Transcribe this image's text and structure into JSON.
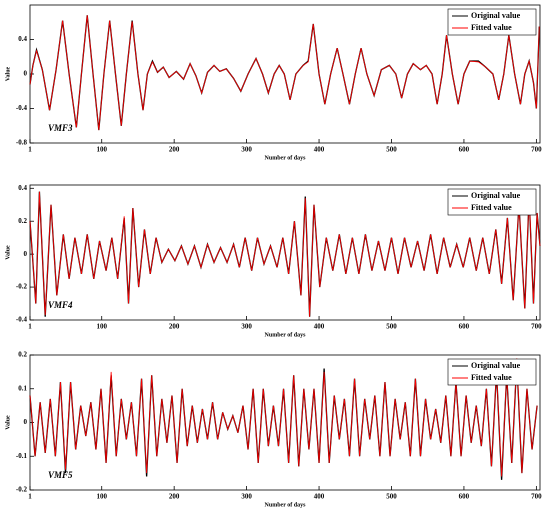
{
  "chart_data": [
    {
      "type": "line",
      "annotation": "VMF3",
      "xlabel": "Number of days",
      "ylabel": "Value",
      "legend": "upper right",
      "xlim": [
        1,
        705
      ],
      "xticks": [
        1,
        100,
        200,
        300,
        400,
        500,
        600,
        700
      ],
      "ylim": [
        -0.8,
        0.8
      ],
      "yticks": [
        -0.8,
        -0.4,
        0,
        0.4
      ],
      "x": [
        1,
        5,
        10,
        18,
        28,
        37,
        46,
        55,
        65,
        72,
        80,
        88,
        96,
        103,
        111,
        119,
        127,
        134,
        142,
        150,
        157,
        163,
        170,
        177,
        185,
        193,
        203,
        213,
        222,
        230,
        238,
        246,
        255,
        263,
        272,
        282,
        292,
        302,
        313,
        322,
        330,
        338,
        345,
        352,
        360,
        368,
        378,
        385,
        392,
        400,
        408,
        416,
        425,
        433,
        442,
        450,
        458,
        466,
        476,
        486,
        497,
        506,
        514,
        522,
        530,
        540,
        548,
        556,
        563,
        570,
        576,
        584,
        592,
        600,
        608,
        620,
        630,
        640,
        648,
        655,
        662,
        670,
        678,
        684,
        690,
        696,
        700,
        704
      ],
      "series": [
        {
          "name": "Original value",
          "color": "#000000",
          "values": [
            -0.12,
            0.1,
            0.28,
            0.05,
            -0.42,
            0.05,
            0.62,
            0,
            -0.62,
            0,
            0.68,
            0,
            -0.65,
            0,
            0.62,
            0,
            -0.6,
            0,
            0.62,
            0,
            -0.42,
            0,
            0.15,
            0.02,
            0.08,
            -0.04,
            0.03,
            -0.06,
            0.12,
            -0.02,
            -0.22,
            0.02,
            0.1,
            0.03,
            0.06,
            -0.05,
            -0.2,
            0,
            0.18,
            0,
            -0.22,
            0,
            0.1,
            0,
            -0.3,
            0,
            0.1,
            0.15,
            0.58,
            0,
            -0.35,
            0,
            0.3,
            0,
            -0.35,
            0,
            0.3,
            0,
            -0.25,
            0.05,
            0.1,
            0,
            -0.28,
            0,
            0.12,
            0.05,
            0.1,
            0,
            -0.35,
            0,
            0.45,
            0,
            -0.35,
            0,
            0.15,
            0.15,
            0.08,
            0,
            -0.3,
            0,
            0.45,
            0,
            -0.35,
            0,
            0.15,
            -0.1,
            -0.4,
            0.55
          ]
        },
        {
          "name": "Fitted value",
          "color": "#ff0000",
          "values": [
            -0.12,
            0.1,
            0.27,
            0.05,
            -0.42,
            0.05,
            0.62,
            0,
            -0.62,
            0,
            0.68,
            0,
            -0.65,
            0,
            0.62,
            0,
            -0.6,
            0,
            0.61,
            0,
            -0.42,
            0,
            0.14,
            0.02,
            0.08,
            -0.04,
            0.03,
            -0.06,
            0.12,
            -0.02,
            -0.22,
            0.02,
            0.1,
            0.03,
            0.06,
            -0.05,
            -0.2,
            0,
            0.18,
            0,
            -0.22,
            0,
            0.1,
            0,
            -0.3,
            0,
            0.1,
            0.14,
            0.58,
            0,
            -0.35,
            0,
            0.3,
            0,
            -0.35,
            0,
            0.3,
            0,
            -0.25,
            0.05,
            0.1,
            0,
            -0.28,
            0,
            0.12,
            0.05,
            0.1,
            0,
            -0.35,
            0,
            0.45,
            0,
            -0.35,
            0,
            0.15,
            0.14,
            0.08,
            0,
            -0.3,
            0,
            0.45,
            0,
            -0.35,
            0,
            0.15,
            -0.1,
            -0.4,
            0.55
          ]
        }
      ]
    },
    {
      "type": "line",
      "annotation": "VMF4",
      "xlabel": "Number of days",
      "ylabel": "Value",
      "legend": "upper right",
      "xlim": [
        1,
        705
      ],
      "xticks": [
        1,
        100,
        200,
        300,
        400,
        500,
        600,
        700
      ],
      "ylim": [
        -0.4,
        0.42
      ],
      "yticks": [
        -0.4,
        -0.2,
        0,
        0.2,
        0.4
      ],
      "x": [
        1,
        9,
        14,
        22,
        30,
        38,
        47,
        55,
        63,
        72,
        80,
        89,
        97,
        106,
        114,
        122,
        131,
        137,
        143,
        151,
        159,
        167,
        175,
        183,
        192,
        201,
        210,
        219,
        228,
        237,
        246,
        255,
        264,
        273,
        282,
        290,
        298,
        307,
        315,
        324,
        333,
        342,
        350,
        358,
        366,
        375,
        381,
        387,
        393,
        401,
        410,
        419,
        428,
        437,
        446,
        455,
        464,
        473,
        482,
        491,
        500,
        509,
        518,
        527,
        536,
        545,
        554,
        563,
        572,
        581,
        590,
        599,
        608,
        617,
        626,
        635,
        644,
        652,
        660,
        668,
        676,
        684,
        690,
        696,
        701,
        705
      ],
      "series": [
        {
          "name": "Original value",
          "color": "#000000",
          "values": [
            0.2,
            -0.3,
            0.38,
            -0.38,
            0.3,
            -0.25,
            0.12,
            -0.15,
            0.1,
            -0.12,
            0.12,
            -0.15,
            0.08,
            -0.1,
            0.1,
            -0.15,
            0.22,
            -0.3,
            0.28,
            -0.2,
            0.15,
            -0.12,
            0.1,
            -0.05,
            0.03,
            -0.04,
            0.05,
            -0.06,
            0.05,
            -0.08,
            0.06,
            -0.05,
            0.04,
            -0.05,
            0.06,
            -0.08,
            0.1,
            -0.1,
            0.1,
            -0.06,
            0.05,
            -0.08,
            0.1,
            -0.12,
            0.2,
            -0.25,
            0.35,
            -0.38,
            0.3,
            -0.2,
            0.1,
            -0.1,
            0.12,
            -0.12,
            0.1,
            -0.12,
            0.12,
            -0.1,
            0.08,
            -0.1,
            0.1,
            -0.12,
            0.1,
            -0.08,
            0.08,
            -0.1,
            0.12,
            -0.12,
            0.1,
            -0.08,
            0.06,
            -0.08,
            0.1,
            -0.1,
            0.1,
            -0.12,
            0.15,
            -0.18,
            0.22,
            -0.28,
            0.3,
            -0.33,
            0.35,
            -0.3,
            0.25,
            0.05
          ]
        },
        {
          "name": "Fitted value",
          "color": "#ff0000",
          "values": [
            0.2,
            -0.3,
            0.38,
            -0.37,
            0.3,
            -0.25,
            0.12,
            -0.15,
            0.1,
            -0.12,
            0.12,
            -0.15,
            0.08,
            -0.1,
            0.1,
            -0.15,
            0.23,
            -0.3,
            0.28,
            -0.2,
            0.15,
            -0.12,
            0.1,
            -0.05,
            0.03,
            -0.04,
            0.05,
            -0.06,
            0.05,
            -0.08,
            0.06,
            -0.05,
            0.04,
            -0.05,
            0.06,
            -0.08,
            0.1,
            -0.1,
            0.1,
            -0.06,
            0.05,
            -0.08,
            0.1,
            -0.12,
            0.2,
            -0.25,
            0.34,
            -0.38,
            0.3,
            -0.2,
            0.1,
            -0.1,
            0.12,
            -0.12,
            0.1,
            -0.12,
            0.12,
            -0.1,
            0.08,
            -0.1,
            0.1,
            -0.12,
            0.1,
            -0.08,
            0.08,
            -0.1,
            0.12,
            -0.12,
            0.1,
            -0.08,
            0.06,
            -0.08,
            0.1,
            -0.1,
            0.1,
            -0.12,
            0.15,
            -0.18,
            0.22,
            -0.28,
            0.3,
            -0.33,
            0.36,
            -0.3,
            0.25,
            0.05
          ]
        }
      ]
    },
    {
      "type": "line",
      "annotation": "VMF5",
      "xlabel": "Number of days",
      "ylabel": "Value",
      "legend": "upper right",
      "xlim": [
        1,
        705
      ],
      "xticks": [
        1,
        100,
        200,
        300,
        400,
        500,
        600,
        700
      ],
      "ylim": [
        -0.2,
        0.2
      ],
      "yticks": [
        -0.2,
        -0.1,
        0,
        0.1,
        0.2
      ],
      "x": [
        1,
        8,
        15,
        22,
        29,
        36,
        43,
        50,
        57,
        64,
        71,
        78,
        85,
        92,
        99,
        106,
        113,
        120,
        127,
        134,
        141,
        148,
        155,
        162,
        169,
        176,
        183,
        190,
        197,
        204,
        211,
        218,
        225,
        232,
        239,
        246,
        253,
        260,
        267,
        274,
        281,
        288,
        295,
        302,
        309,
        316,
        323,
        330,
        337,
        344,
        351,
        358,
        365,
        372,
        379,
        386,
        393,
        400,
        407,
        414,
        421,
        428,
        435,
        442,
        449,
        456,
        463,
        470,
        477,
        484,
        491,
        498,
        505,
        512,
        519,
        526,
        533,
        540,
        547,
        554,
        561,
        568,
        575,
        582,
        589,
        596,
        603,
        610,
        617,
        624,
        631,
        638,
        645,
        652,
        659,
        666,
        673,
        680,
        687,
        694,
        701
      ],
      "series": [
        {
          "name": "Original value",
          "color": "#000000",
          "values": [
            0.08,
            -0.1,
            0.06,
            -0.09,
            0.07,
            -0.1,
            0.12,
            -0.15,
            0.12,
            -0.08,
            0.05,
            -0.04,
            0.06,
            -0.08,
            0.1,
            -0.12,
            0.14,
            -0.1,
            0.07,
            -0.05,
            0.06,
            -0.1,
            0.13,
            -0.16,
            0.14,
            -0.1,
            0.07,
            -0.06,
            0.08,
            -0.12,
            0.1,
            -0.07,
            0.05,
            -0.06,
            0.04,
            -0.05,
            0.06,
            -0.05,
            0.03,
            -0.02,
            0.02,
            -0.03,
            0.05,
            -0.08,
            0.1,
            -0.12,
            0.1,
            -0.07,
            0.05,
            -0.07,
            0.1,
            -0.12,
            0.14,
            -0.13,
            0.1,
            -0.08,
            0.1,
            -0.12,
            0.16,
            -0.12,
            0.08,
            -0.05,
            0.07,
            -0.1,
            0.13,
            -0.1,
            0.07,
            -0.05,
            0.08,
            -0.1,
            0.12,
            -0.1,
            0.07,
            -0.05,
            0.06,
            -0.1,
            0.13,
            -0.1,
            0.07,
            -0.05,
            0.04,
            -0.06,
            0.08,
            -0.1,
            0.12,
            -0.1,
            0.08,
            -0.06,
            0.05,
            -0.07,
            0.1,
            -0.13,
            0.15,
            -0.17,
            0.14,
            -0.12,
            0.18,
            -0.15,
            0.1,
            -0.08,
            0.05
          ]
        },
        {
          "name": "Fitted value",
          "color": "#ff0000",
          "values": [
            0.08,
            -0.1,
            0.06,
            -0.09,
            0.07,
            -0.1,
            0.12,
            -0.14,
            0.12,
            -0.08,
            0.05,
            -0.04,
            0.06,
            -0.08,
            0.1,
            -0.12,
            0.15,
            -0.1,
            0.07,
            -0.05,
            0.06,
            -0.1,
            0.13,
            -0.15,
            0.14,
            -0.1,
            0.07,
            -0.06,
            0.08,
            -0.12,
            0.1,
            -0.07,
            0.05,
            -0.06,
            0.04,
            -0.05,
            0.06,
            -0.05,
            0.03,
            -0.02,
            0.02,
            -0.03,
            0.05,
            -0.08,
            0.1,
            -0.12,
            0.1,
            -0.07,
            0.05,
            -0.07,
            0.1,
            -0.12,
            0.14,
            -0.13,
            0.1,
            -0.08,
            0.1,
            -0.12,
            0.15,
            -0.12,
            0.08,
            -0.05,
            0.07,
            -0.1,
            0.13,
            -0.1,
            0.07,
            -0.05,
            0.08,
            -0.1,
            0.12,
            -0.1,
            0.07,
            -0.05,
            0.06,
            -0.1,
            0.13,
            -0.1,
            0.07,
            -0.05,
            0.04,
            -0.06,
            0.08,
            -0.1,
            0.12,
            -0.1,
            0.08,
            -0.06,
            0.05,
            -0.07,
            0.1,
            -0.13,
            0.15,
            -0.16,
            0.14,
            -0.12,
            0.19,
            -0.15,
            0.1,
            -0.08,
            0.05
          ]
        }
      ]
    }
  ]
}
